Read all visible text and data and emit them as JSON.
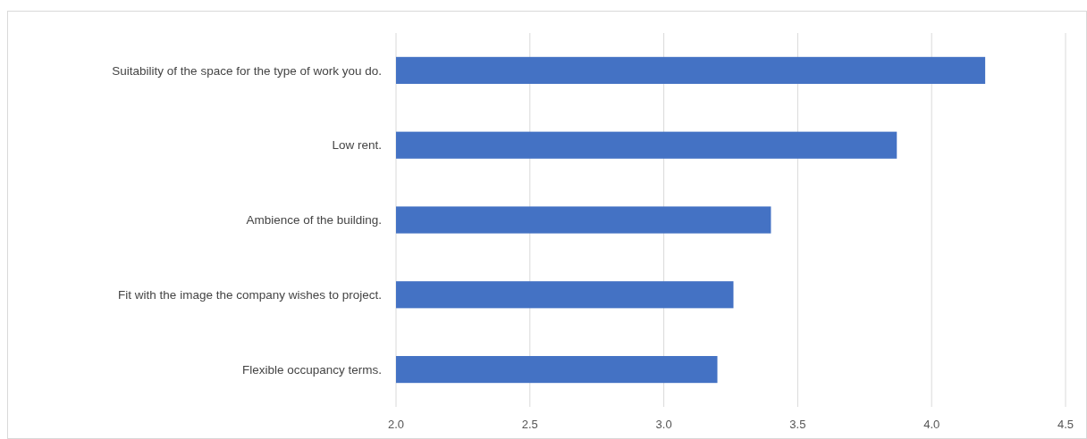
{
  "chart_data": {
    "type": "bar",
    "orientation": "horizontal",
    "categories": [
      "Suitability of the space for the type of work you do.",
      "Low rent.",
      "Ambience of the building.",
      "Fit with the image the company wishes to project.",
      "Flexible occupancy terms."
    ],
    "values": [
      4.2,
      3.87,
      3.4,
      3.26,
      3.2
    ],
    "color": "#4472c4",
    "xlim": [
      2,
      4.5
    ],
    "xticks": [
      {
        "value": 2,
        "label": "2.0"
      },
      2.5,
      {
        "value": 3,
        "label": "3.0"
      },
      3.5,
      {
        "value": 4,
        "label": "4.0"
      },
      4.5
    ],
    "grid": "x"
  }
}
